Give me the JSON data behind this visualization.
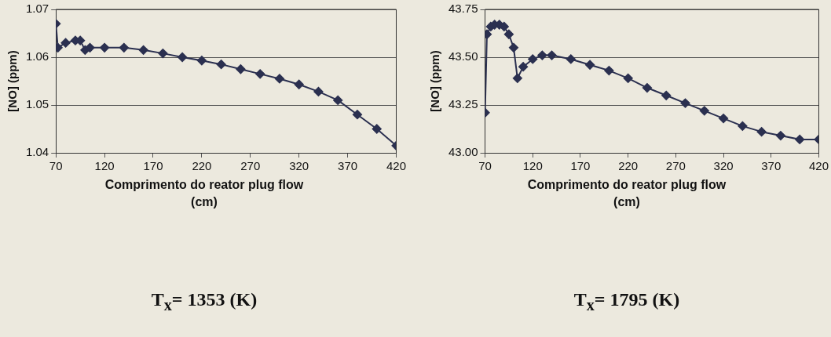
{
  "chart_data": [
    {
      "type": "line",
      "xlabel": "Comprimento do reator plug flow (cm)",
      "ylabel": "[NO] (ppm)",
      "annotations": [
        "T$_{x}$= 1353 (K)"
      ],
      "x": [
        70,
        72,
        80,
        90,
        95,
        100,
        105,
        120,
        140,
        160,
        180,
        200,
        220,
        240,
        260,
        280,
        300,
        320,
        340,
        360,
        380,
        400,
        420
      ],
      "series": [
        {
          "color": "#2b3050",
          "values": [
            1.067,
            1.062,
            1.063,
            1.0635,
            1.0635,
            1.0615,
            1.062,
            1.062,
            1.062,
            1.0615,
            1.0608,
            1.06,
            1.0593,
            1.0585,
            1.0575,
            1.0565,
            1.0555,
            1.0543,
            1.0528,
            1.051,
            1.048,
            1.045,
            1.0415
          ]
        }
      ],
      "xlim": [
        70,
        420
      ],
      "xticks": [
        70,
        120,
        170,
        220,
        270,
        320,
        370,
        420
      ],
      "ylim": [
        1.04,
        1.07
      ],
      "yticks": [
        {
          "value": 1.04,
          "label": "1.04"
        },
        {
          "value": 1.05,
          "label": "1.05"
        },
        {
          "value": 1.06,
          "label": "1.06"
        },
        {
          "value": 1.07,
          "label": "1.07"
        }
      ],
      "grid": "y",
      "legend": false,
      "marker": "diamond",
      "line_style": "solid"
    },
    {
      "type": "line",
      "xlabel": "Comprimento do reator plug flow (cm)",
      "ylabel": "[NO] (ppm)",
      "annotations": [
        "T$_{x}$= 1795 (K)"
      ],
      "x": [
        70,
        72,
        76,
        80,
        85,
        90,
        95,
        100,
        104,
        110,
        120,
        130,
        140,
        160,
        180,
        200,
        220,
        240,
        260,
        280,
        300,
        320,
        340,
        360,
        380,
        400,
        420
      ],
      "series": [
        {
          "color": "#2b3050",
          "values": [
            43.21,
            43.62,
            43.66,
            43.67,
            43.67,
            43.66,
            43.62,
            43.55,
            43.39,
            43.45,
            43.49,
            43.51,
            43.51,
            43.49,
            43.46,
            43.43,
            43.39,
            43.34,
            43.3,
            43.26,
            43.22,
            43.18,
            43.14,
            43.11,
            43.09,
            43.07,
            43.07
          ]
        }
      ],
      "xlim": [
        70,
        420
      ],
      "xticks": [
        70,
        120,
        170,
        220,
        270,
        320,
        370,
        420
      ],
      "ylim": [
        43.0,
        43.75
      ],
      "yticks": [
        {
          "value": 43.0,
          "label": "43.00"
        },
        {
          "value": 43.25,
          "label": "43.25"
        },
        {
          "value": 43.5,
          "label": "43.50"
        },
        {
          "value": 43.75,
          "label": "43.75"
        }
      ],
      "grid": "y",
      "legend": false,
      "marker": "diamond",
      "line_style": "solid"
    }
  ]
}
